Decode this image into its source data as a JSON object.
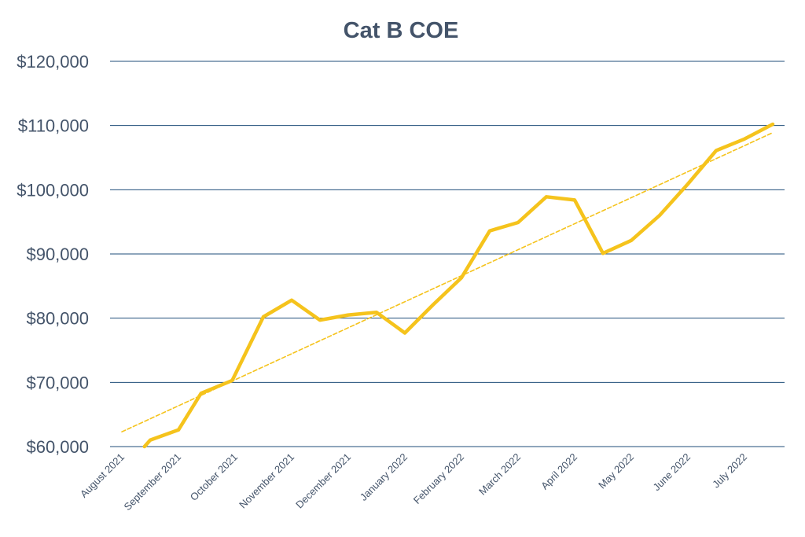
{
  "chart_data": {
    "type": "line",
    "title": "Cat B COE",
    "xlabel": "",
    "ylabel": "",
    "ylim": [
      60000,
      120000
    ],
    "yticks": [
      60000,
      70000,
      80000,
      90000,
      100000,
      110000,
      120000
    ],
    "ytick_labels": [
      "$60,000",
      "$70,000",
      "$80,000",
      "$90,000",
      "$100,000",
      "$110,000",
      "$120,000"
    ],
    "categories": [
      "August 2021",
      "September 2021",
      "October 2021",
      "November 2021",
      "December 2021",
      "January 2022",
      "February 2022",
      "March 2022",
      "April 2022",
      "May 2022",
      "June 2022",
      "July 2022"
    ],
    "series": [
      {
        "name": "Cat B COE",
        "color": "#f5c31c",
        "x": [
          0.4,
          0.5,
          1.0,
          1.4,
          1.95,
          2.5,
          3.0,
          3.5,
          4.0,
          4.5,
          5.0,
          5.5,
          6.0,
          6.5,
          7.0,
          7.5,
          8.0,
          8.5,
          9.0,
          9.5,
          10.0,
          10.5,
          11.0,
          11.5
        ],
        "values": [
          60000,
          61000,
          62600,
          68300,
          70300,
          80200,
          82800,
          79700,
          80500,
          80900,
          77700,
          82100,
          86300,
          93600,
          94900,
          98900,
          98400,
          90100,
          92100,
          96000,
          100900,
          106100,
          107900,
          110200
        ]
      },
      {
        "name": "Linear trend",
        "color": "#f5c31c",
        "dashed": true,
        "x": [
          0,
          11.5
        ],
        "values": [
          62300,
          108900
        ]
      }
    ]
  }
}
